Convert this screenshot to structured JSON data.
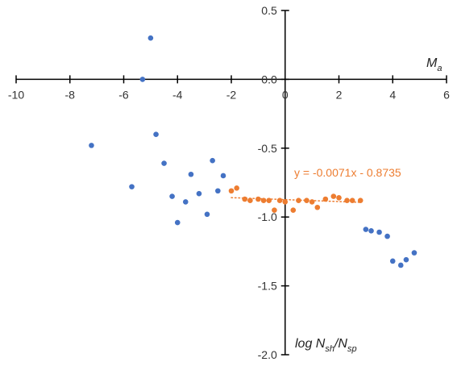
{
  "chart_data": {
    "type": "scatter",
    "xlim": [
      -10,
      6
    ],
    "ylim": [
      -2.0,
      0.5
    ],
    "x_ticks": [
      -10,
      -8,
      -6,
      -4,
      -2,
      0,
      2,
      4,
      6
    ],
    "y_ticks": [
      0.5,
      0.0,
      -0.5,
      -1.0,
      -1.5,
      -2.0
    ],
    "x_tick_labels": [
      "-10",
      "-8",
      "-6",
      "-4",
      "-2",
      "0",
      "2",
      "4",
      "6"
    ],
    "y_tick_labels": [
      "0.5",
      "0.0",
      "-0.5",
      "-1.0",
      "-1.5",
      "-2.0"
    ],
    "xlabel": {
      "main": "M",
      "sub": "a"
    },
    "ylabel": {
      "p1": "log N",
      "s1": "sh",
      "p2": "/N",
      "s2": "sp"
    },
    "grid": false,
    "legend": "none",
    "series": [
      {
        "color": "#4472C4",
        "points": [
          [
            -5.0,
            0.3
          ],
          [
            -5.3,
            0.0
          ],
          [
            -7.2,
            -0.48
          ],
          [
            -5.7,
            -0.78
          ],
          [
            -4.8,
            -0.4
          ],
          [
            -4.5,
            -0.61
          ],
          [
            -4.2,
            -0.85
          ],
          [
            -4.0,
            -1.04
          ],
          [
            -3.7,
            -0.89
          ],
          [
            -3.5,
            -0.69
          ],
          [
            -3.2,
            -0.83
          ],
          [
            -2.9,
            -0.98
          ],
          [
            -2.7,
            -0.59
          ],
          [
            -2.5,
            -0.81
          ],
          [
            -2.3,
            -0.7
          ],
          [
            3.0,
            -1.09
          ],
          [
            3.2,
            -1.1
          ],
          [
            3.5,
            -1.11
          ],
          [
            3.8,
            -1.14
          ],
          [
            4.0,
            -1.32
          ],
          [
            4.3,
            -1.35
          ],
          [
            4.5,
            -1.31
          ],
          [
            4.8,
            -1.26
          ]
        ]
      },
      {
        "color": "#ED7D31",
        "points": [
          [
            -2.0,
            -0.81
          ],
          [
            -1.8,
            -0.79
          ],
          [
            -1.5,
            -0.87
          ],
          [
            -1.3,
            -0.88
          ],
          [
            -1.0,
            -0.87
          ],
          [
            -0.8,
            -0.88
          ],
          [
            -0.6,
            -0.88
          ],
          [
            -0.4,
            -0.95
          ],
          [
            -0.2,
            -0.88
          ],
          [
            0.0,
            -0.89
          ],
          [
            0.3,
            -0.95
          ],
          [
            0.5,
            -0.88
          ],
          [
            0.8,
            -0.88
          ],
          [
            1.0,
            -0.89
          ],
          [
            1.2,
            -0.93
          ],
          [
            1.5,
            -0.87
          ],
          [
            1.8,
            -0.85
          ],
          [
            2.0,
            -0.86
          ],
          [
            2.3,
            -0.88
          ],
          [
            2.5,
            -0.88
          ],
          [
            2.8,
            -0.88
          ]
        ]
      }
    ],
    "trendline": {
      "color": "#ED7D31",
      "slope": -0.0071,
      "intercept": -0.8735,
      "x_range": [
        -2.0,
        2.8
      ],
      "label": "y = -0.0071x - 0.8735"
    }
  }
}
